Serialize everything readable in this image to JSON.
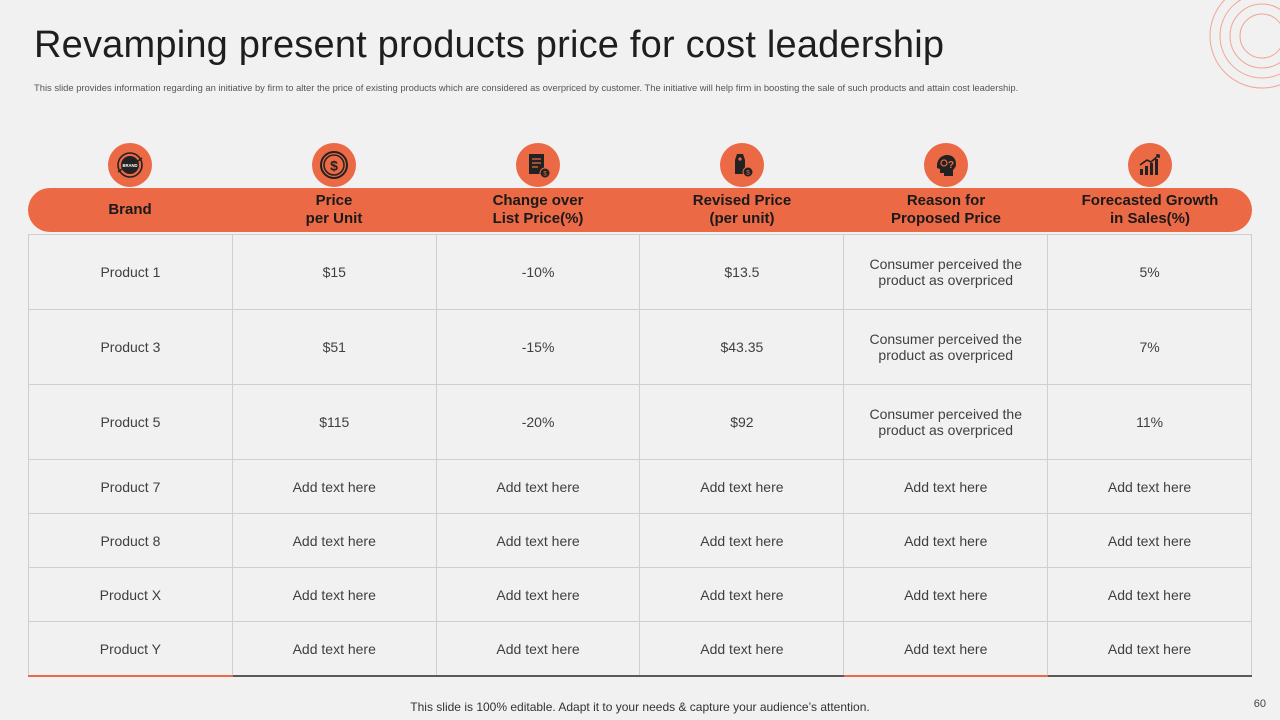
{
  "slide": {
    "title": "Revamping present products price for cost leadership",
    "subtitle": "This slide provides information regarding an initiative by firm to alter the price of existing products which are considered as overpriced by customer. The initiative will help firm in boosting the sale of such products and attain cost leadership.",
    "footer": "This slide is 100% editable. Adapt it to your needs & capture your audience’s attention.",
    "page_number": "60",
    "accent_color": "#ec6945"
  },
  "brand_badge": "BRAND",
  "columns": [
    {
      "line1": "Brand",
      "line2": "",
      "icon": "brand-badge-icon"
    },
    {
      "line1": "Price",
      "line2": "per Unit",
      "icon": "dollar-coin-icon"
    },
    {
      "line1": "Change over",
      "line2": "List Price(%)",
      "icon": "price-list-icon"
    },
    {
      "line1": "Revised Price",
      "line2": "(per unit)",
      "icon": "price-tag-icon"
    },
    {
      "line1": "Reason for",
      "line2": "Proposed Price",
      "icon": "reasoning-head-icon"
    },
    {
      "line1": "Forecasted Growth",
      "line2": "in Sales(%)",
      "icon": "growth-chart-icon"
    }
  ],
  "rows": [
    [
      "Product 1",
      "$15",
      "-10%",
      "$13.5",
      "Consumer perceived the product as overpriced",
      "5%"
    ],
    [
      "Product 3",
      "$51",
      "-15%",
      "$43.35",
      "Consumer perceived the product as overpriced",
      "7%"
    ],
    [
      "Product 5",
      "$115",
      "-20%",
      "$92",
      "Consumer perceived the product as overpriced",
      "11%"
    ],
    [
      "Product 7",
      "Add text here",
      "Add text here",
      "Add text here",
      "Add text here",
      "Add text here"
    ],
    [
      "Product 8",
      "Add text here",
      "Add text here",
      "Add text here",
      "Add text here",
      "Add text here"
    ],
    [
      "Product X",
      "Add text here",
      "Add text here",
      "Add text here",
      "Add text here",
      "Add text here"
    ],
    [
      "Product Y",
      "Add text here",
      "Add text here",
      "Add text here",
      "Add text here",
      "Add text here"
    ]
  ]
}
